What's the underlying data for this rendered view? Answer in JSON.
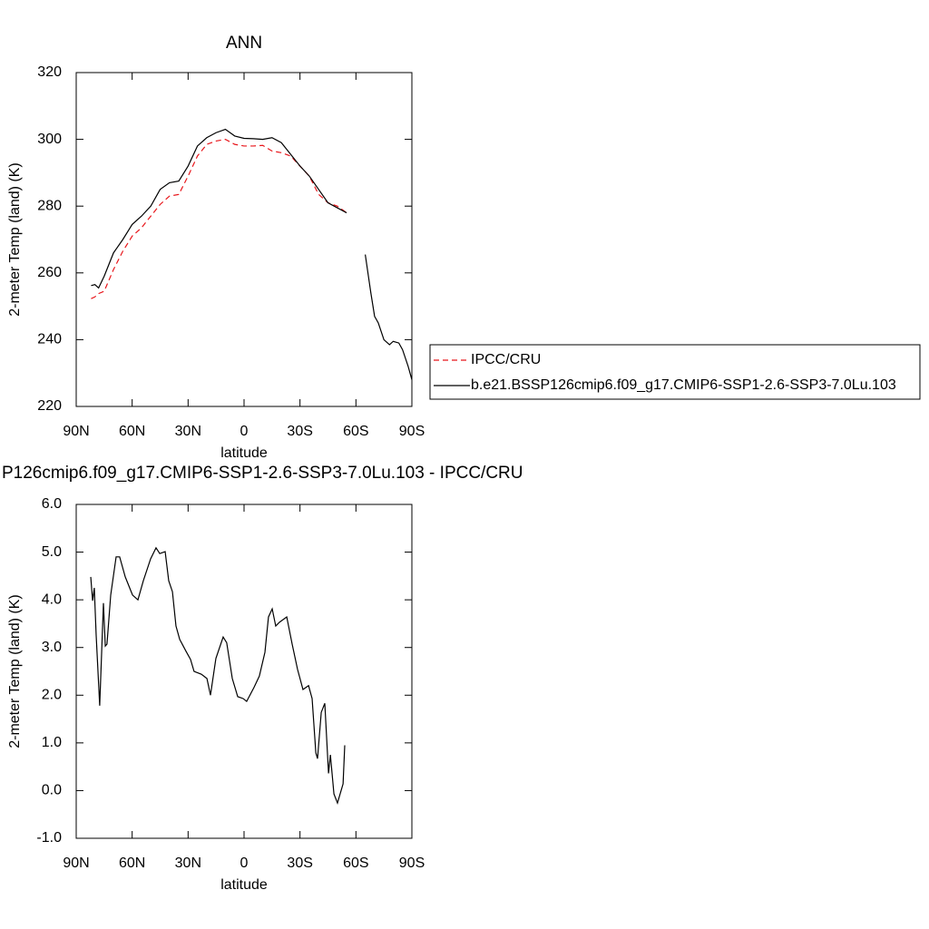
{
  "chart_data": [
    {
      "type": "line",
      "title": "ANN",
      "xlabel": "latitude",
      "ylabel": "2-meter Temp (land) (K)",
      "xlim": [
        90,
        -90
      ],
      "xticks": [
        {
          "value": 90,
          "label": "90N"
        },
        {
          "value": 60,
          "label": "60N"
        },
        {
          "value": 30,
          "label": "30N"
        },
        0,
        {
          "value": -30,
          "label": "30S"
        },
        {
          "value": -60,
          "label": "60S"
        },
        {
          "value": -90,
          "label": "90S"
        }
      ],
      "ylim": [
        220,
        320
      ],
      "yticks": [
        220,
        240,
        260,
        280,
        300,
        320
      ],
      "x": [
        82,
        80,
        78,
        75,
        70,
        65,
        60,
        55,
        50,
        45,
        40,
        35,
        30,
        25,
        20,
        15,
        10,
        5,
        0,
        -5,
        -10,
        -15,
        -20,
        -25,
        -30,
        -35,
        -40,
        -45,
        -50,
        -55,
        -60,
        -65,
        -68,
        -70,
        -72,
        -75,
        -78,
        -80,
        -83,
        -85,
        -88,
        -90
      ],
      "series": [
        {
          "name": "IPCC/CRU",
          "color": "#e8161b",
          "dashed": true,
          "values": [
            252.3,
            252.8,
            253.8,
            254.5,
            261,
            266.5,
            271,
            273.5,
            277,
            280.5,
            283,
            283.5,
            289,
            295,
            298.5,
            299.5,
            300,
            298.5,
            298,
            298,
            298.2,
            296.5,
            296,
            295,
            292,
            289,
            283.5,
            281,
            280,
            278,
            null,
            null,
            null,
            null,
            null,
            null,
            null,
            null,
            null,
            null,
            null,
            null
          ]
        },
        {
          "name": "b.e21.BSSP126cmip6.f09_g17.CMIP6-SSP1-2.6-SSP3-7.0Lu.103",
          "color": "#000000",
          "dashed": false,
          "values": [
            256.2,
            256.5,
            255.5,
            259,
            266,
            270,
            274.5,
            277,
            280,
            285,
            287,
            287.5,
            292,
            298,
            300.5,
            302,
            303,
            301,
            300.3,
            300.2,
            300,
            300.5,
            299,
            295.5,
            292,
            289,
            285,
            281,
            279.5,
            278,
            null,
            265.5,
            254,
            247,
            245,
            240,
            238.5,
            239.5,
            239,
            237,
            232,
            228
          ]
        }
      ]
    },
    {
      "type": "line",
      "title": "P126cmip6.f09_g17.CMIP6-SSP1-2.6-SSP3-7.0Lu.103 - IPCC/CRU",
      "xlabel": "latitude",
      "ylabel": "2-meter Temp (land) (K)",
      "xlim": [
        90,
        -90
      ],
      "xticks": [
        {
          "value": 90,
          "label": "90N"
        },
        {
          "value": 60,
          "label": "60N"
        },
        {
          "value": 30,
          "label": "30N"
        },
        0,
        {
          "value": -30,
          "label": "30S"
        },
        {
          "value": -60,
          "label": "60S"
        },
        {
          "value": -90,
          "label": "90S"
        }
      ],
      "ylim": [
        -1,
        6
      ],
      "yticks": [
        {
          "value": -1,
          "label": "-1.0"
        },
        {
          "value": 0,
          "label": "0.0"
        },
        {
          "value": 1,
          "label": "1.0"
        },
        {
          "value": 2,
          "label": "2.0"
        },
        {
          "value": 3,
          "label": "3.0"
        },
        {
          "value": 4,
          "label": "4.0"
        },
        {
          "value": 5,
          "label": "5.0"
        },
        {
          "value": 6,
          "label": "6.0"
        }
      ],
      "color": "#000000",
      "x": [
        82.2,
        81.2,
        80.3,
        79.3,
        77.4,
        75.4,
        74.4,
        73.5,
        71.5,
        68.6,
        66.7,
        63.7,
        59.8,
        56.9,
        54,
        50.1,
        47.2,
        45.2,
        42.3,
        40.4,
        38.4,
        36.5,
        34.5,
        31.1,
        28.7,
        26.8,
        22.9,
        19.9,
        18,
        15.1,
        11.2,
        9.3,
        6.3,
        3.4,
        0.5,
        -1.4,
        -5.3,
        -8.2,
        -11.2,
        -13.1,
        -15.1,
        -17,
        -19,
        -22.9,
        -25.8,
        -28.7,
        -31.6,
        -34.6,
        -36.5,
        -38.5,
        -39.4,
        -41.4,
        -43.3,
        -45.3,
        -46.3,
        -48.2,
        -50.1,
        -53.1,
        -54
      ],
      "values": [
        4.48,
        3.98,
        4.25,
        3.26,
        1.78,
        3.93,
        3.03,
        3.07,
        4.1,
        4.9,
        4.9,
        4.48,
        4.1,
        4.0,
        4.4,
        4.86,
        5.09,
        4.97,
        5.01,
        4.4,
        4.17,
        3.45,
        3.17,
        2.92,
        2.75,
        2.5,
        2.44,
        2.35,
        2.0,
        2.77,
        3.22,
        3.1,
        2.35,
        1.97,
        1.93,
        1.87,
        2.16,
        2.4,
        2.9,
        3.64,
        3.81,
        3.45,
        3.53,
        3.64,
        3.07,
        2.54,
        2.12,
        2.2,
        1.93,
        0.79,
        0.67,
        1.64,
        1.83,
        0.36,
        0.75,
        -0.07,
        -0.26,
        0.14,
        0.95
      ]
    }
  ]
}
